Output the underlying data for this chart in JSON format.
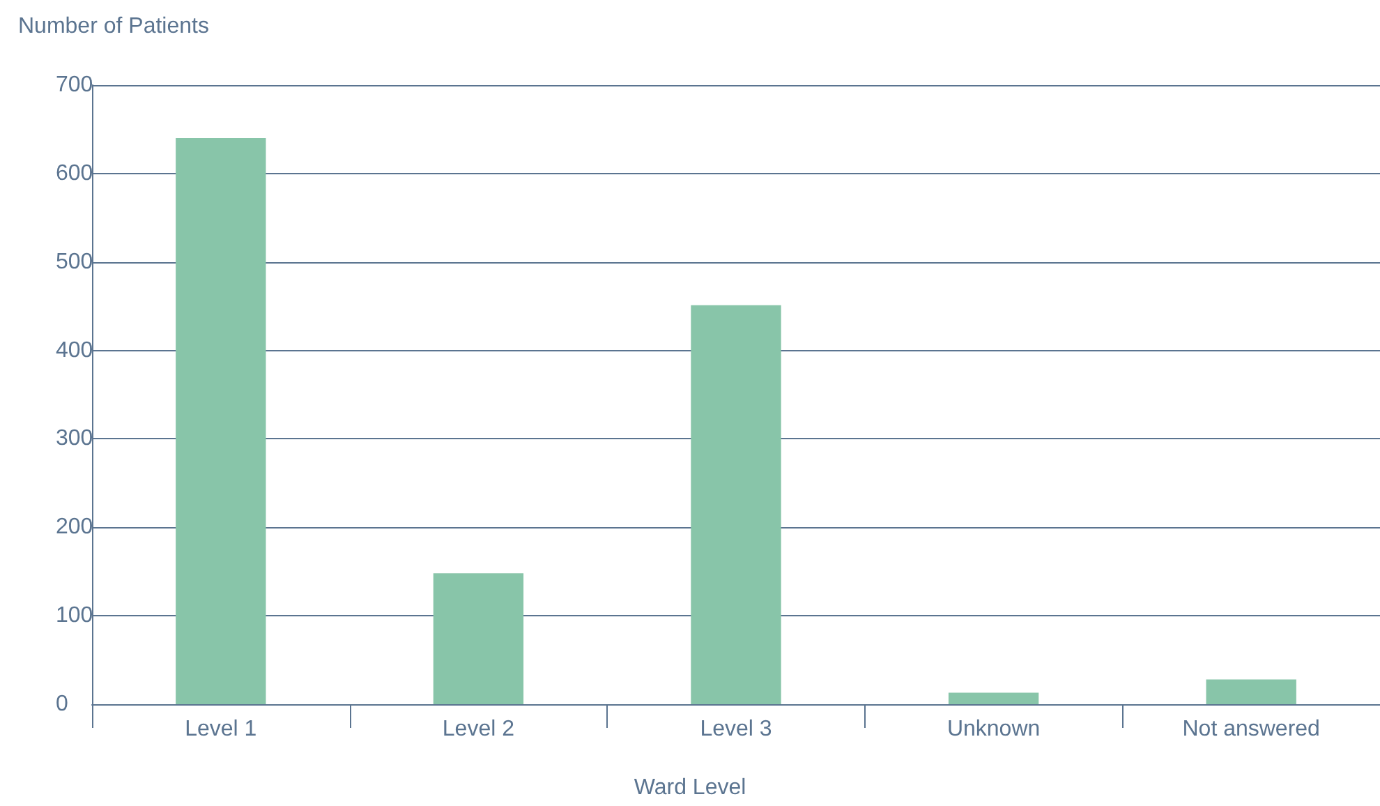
{
  "chart_data": {
    "type": "bar",
    "ylabel": "Number of Patients",
    "xlabel": "Ward Level",
    "categories": [
      "Level 1",
      "Level 2",
      "Level 3",
      "Unknown",
      "Not answered"
    ],
    "values": [
      640,
      148,
      451,
      13,
      28
    ],
    "color": "#88c5a9",
    "ylim": [
      0,
      700
    ],
    "yticks": [
      0,
      100,
      200,
      300,
      400,
      500,
      600,
      700
    ],
    "grid": "y"
  }
}
